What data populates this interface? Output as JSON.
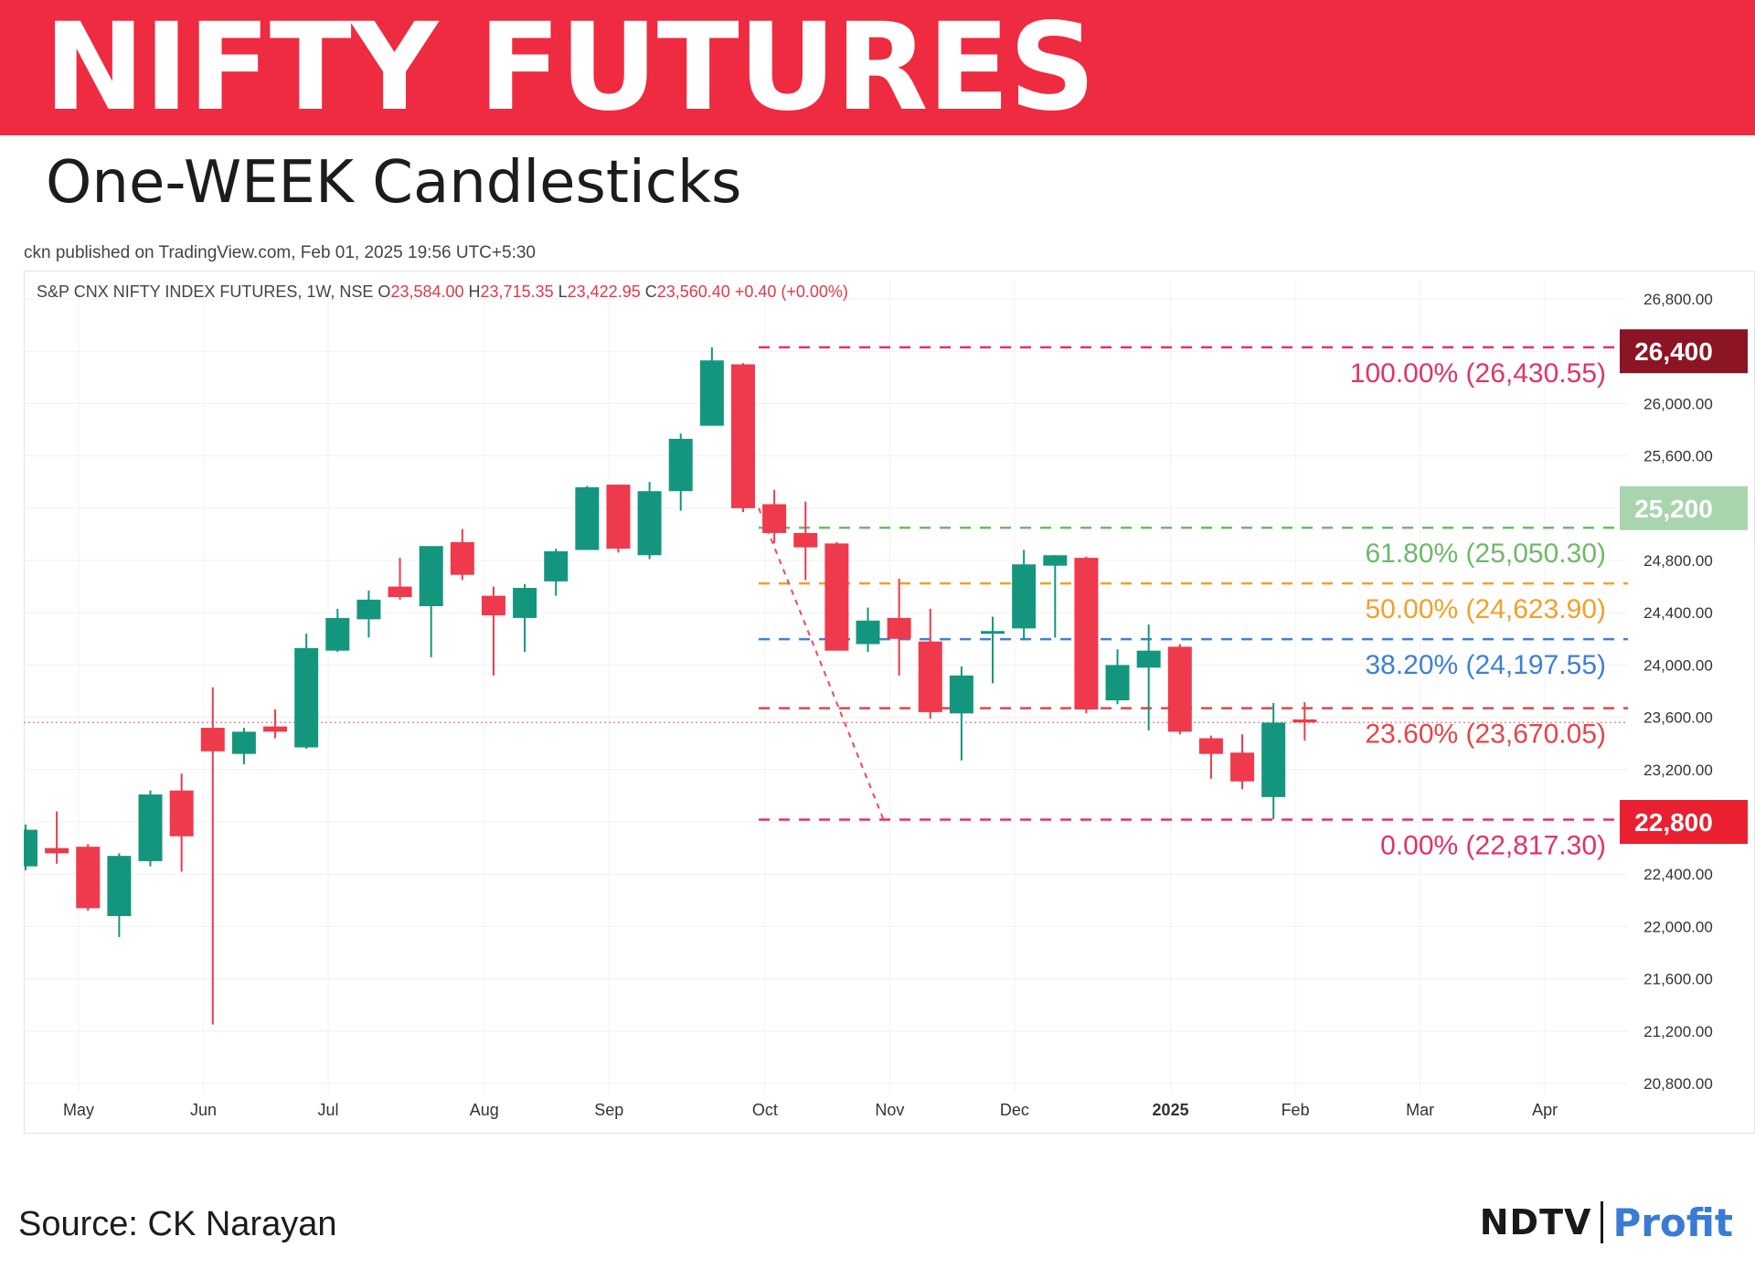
{
  "header": {
    "title": "NIFTY FUTURES",
    "subtitle": "One-WEEK Candlesticks"
  },
  "published": "ckn published on TradingView.com, Feb 01, 2025 19:56 UTC+5:30",
  "legend": {
    "symbol": "S&P CNX NIFTY INDEX FUTURES, 1W, NSE",
    "o_key": "O",
    "o_val": "23,584.00",
    "h_key": "H",
    "h_val": "23,715.35",
    "l_key": "L",
    "l_val": "23,422.95",
    "c_key": "C",
    "c_val": "23,560.40",
    "change": "+0.40 (+0.00%)"
  },
  "footer": {
    "source": "Source: CK Narayan",
    "logo_left": "NDTV",
    "logo_right": "Profit"
  },
  "colors": {
    "up": "#14967e",
    "down": "#ee3a4c",
    "banner": "#ee2b40"
  },
  "chart_data": {
    "type": "candlestick",
    "interval": "1W",
    "ylim": [
      20800,
      26800
    ],
    "y_ticks": [
      {
        "value": 26800,
        "label": "26,800.00"
      },
      {
        "value": 26000,
        "label": "26,000.00"
      },
      {
        "value": 25600,
        "label": "25,600.00"
      },
      {
        "value": 24800,
        "label": "24,800.00"
      },
      {
        "value": 24400,
        "label": "24,400.00"
      },
      {
        "value": 24000,
        "label": "24,000.00"
      },
      {
        "value": 23600,
        "label": "23,600.00"
      },
      {
        "value": 23200,
        "label": "23,200.00"
      },
      {
        "value": 22400,
        "label": "22,400.00"
      },
      {
        "value": 22000,
        "label": "22,000.00"
      },
      {
        "value": 21600,
        "label": "21,600.00"
      },
      {
        "value": 21200,
        "label": "21,200.00"
      },
      {
        "value": 20800,
        "label": "20,800.00"
      }
    ],
    "x_ticks": [
      {
        "week": 1.7,
        "label": "May",
        "bold": false
      },
      {
        "week": 5.7,
        "label": "Jun",
        "bold": false
      },
      {
        "week": 9.7,
        "label": "Jul",
        "bold": false
      },
      {
        "week": 14.7,
        "label": "Aug",
        "bold": false
      },
      {
        "week": 18.7,
        "label": "Sep",
        "bold": false
      },
      {
        "week": 23.7,
        "label": "Oct",
        "bold": false
      },
      {
        "week": 27.7,
        "label": "Nov",
        "bold": false
      },
      {
        "week": 31.7,
        "label": "Dec",
        "bold": false
      },
      {
        "week": 36.7,
        "label": "2025",
        "bold": true
      },
      {
        "week": 40.7,
        "label": "Feb",
        "bold": false
      },
      {
        "week": 44.7,
        "label": "Mar",
        "bold": false
      },
      {
        "week": 48.7,
        "label": "Apr",
        "bold": false
      }
    ],
    "candles": [
      {
        "o": 22460,
        "h": 22780,
        "l": 22430,
        "c": 22740
      },
      {
        "o": 22600,
        "h": 22880,
        "l": 22480,
        "c": 22560
      },
      {
        "o": 22610,
        "h": 22630,
        "l": 22120,
        "c": 22140
      },
      {
        "o": 22080,
        "h": 22560,
        "l": 21920,
        "c": 22540
      },
      {
        "o": 22500,
        "h": 23040,
        "l": 22460,
        "c": 23010
      },
      {
        "o": 23040,
        "h": 23170,
        "l": 22420,
        "c": 22690
      },
      {
        "o": 23520,
        "h": 23830,
        "l": 21250,
        "c": 23340
      },
      {
        "o": 23320,
        "h": 23520,
        "l": 23240,
        "c": 23490
      },
      {
        "o": 23530,
        "h": 23660,
        "l": 23440,
        "c": 23490
      },
      {
        "o": 23370,
        "h": 24240,
        "l": 23360,
        "c": 24130
      },
      {
        "o": 24110,
        "h": 24430,
        "l": 24100,
        "c": 24360
      },
      {
        "o": 24350,
        "h": 24570,
        "l": 24210,
        "c": 24500
      },
      {
        "o": 24600,
        "h": 24820,
        "l": 24500,
        "c": 24520
      },
      {
        "o": 24450,
        "h": 24900,
        "l": 24060,
        "c": 24910
      },
      {
        "o": 24940,
        "h": 25040,
        "l": 24650,
        "c": 24690
      },
      {
        "o": 24530,
        "h": 24600,
        "l": 23920,
        "c": 24380
      },
      {
        "o": 24360,
        "h": 24620,
        "l": 24100,
        "c": 24590
      },
      {
        "o": 24640,
        "h": 24890,
        "l": 24530,
        "c": 24870
      },
      {
        "o": 24880,
        "h": 25370,
        "l": 24880,
        "c": 25360
      },
      {
        "o": 25380,
        "h": 25380,
        "l": 24860,
        "c": 24890
      },
      {
        "o": 24840,
        "h": 25400,
        "l": 24810,
        "c": 25330
      },
      {
        "o": 25330,
        "h": 25770,
        "l": 25180,
        "c": 25730
      },
      {
        "o": 25830,
        "h": 26430,
        "l": 25830,
        "c": 26330
      },
      {
        "o": 26300,
        "h": 26310,
        "l": 25170,
        "c": 25200
      },
      {
        "o": 25230,
        "h": 25340,
        "l": 24930,
        "c": 25010
      },
      {
        "o": 25010,
        "h": 25250,
        "l": 24650,
        "c": 24900
      },
      {
        "o": 24930,
        "h": 24940,
        "l": 24170,
        "c": 24110
      },
      {
        "o": 24160,
        "h": 24440,
        "l": 24100,
        "c": 24340
      },
      {
        "o": 24360,
        "h": 24660,
        "l": 23920,
        "c": 24200
      },
      {
        "o": 24180,
        "h": 24430,
        "l": 23590,
        "c": 23640
      },
      {
        "o": 23630,
        "h": 23990,
        "l": 23270,
        "c": 23920
      },
      {
        "o": 24240,
        "h": 24370,
        "l": 23860,
        "c": 24260
      },
      {
        "o": 24280,
        "h": 24880,
        "l": 24190,
        "c": 24770
      },
      {
        "o": 24760,
        "h": 24840,
        "l": 24210,
        "c": 24840
      },
      {
        "o": 24820,
        "h": 24830,
        "l": 23630,
        "c": 23660
      },
      {
        "o": 23730,
        "h": 24120,
        "l": 23700,
        "c": 24000
      },
      {
        "o": 23980,
        "h": 24310,
        "l": 23500,
        "c": 24110
      },
      {
        "o": 24140,
        "h": 24160,
        "l": 23470,
        "c": 23490
      },
      {
        "o": 23440,
        "h": 23460,
        "l": 23130,
        "c": 23320
      },
      {
        "o": 23330,
        "h": 23470,
        "l": 23050,
        "c": 23110
      },
      {
        "o": 22990,
        "h": 23710,
        "l": 22820,
        "c": 23560
      },
      {
        "o": 23584,
        "h": 23715.35,
        "l": 23422.95,
        "c": 23560.4
      }
    ],
    "last_price": 23560.4,
    "fib_levels": [
      {
        "label": "100.00% (26,430.55)",
        "value": 26430.55,
        "color": "#e0336a"
      },
      {
        "label": "61.80% (25,050.30)",
        "value": 25050.3,
        "color": "#70b86a"
      },
      {
        "label": "50.00% (24,623.90)",
        "value": 24623.9,
        "color": "#f0a12a"
      },
      {
        "label": "38.20% (24,197.55)",
        "value": 24197.55,
        "color": "#3f7fd8"
      },
      {
        "label": "23.60% (23,670.05)",
        "value": 23670.05,
        "color": "#e0464a"
      },
      {
        "label": "0.00% (22,817.30)",
        "value": 22817.3,
        "color": "#e0336a"
      }
    ],
    "fib_trend": {
      "from_week": 23.5,
      "from_value": 25200,
      "to_week": 27.5,
      "to_value": 22817.3,
      "color": "#ee4a5a"
    },
    "price_tags": [
      {
        "value": 26400,
        "label": "26,400",
        "bg": "#8c1424",
        "fg": "#ffffff"
      },
      {
        "value": 25200,
        "label": "25,200",
        "bg": "#a8d5ad",
        "fg": "#ffffff"
      },
      {
        "value": 22800,
        "label": "22,800",
        "bg": "#e8202f",
        "fg": "#ffffff"
      }
    ]
  }
}
